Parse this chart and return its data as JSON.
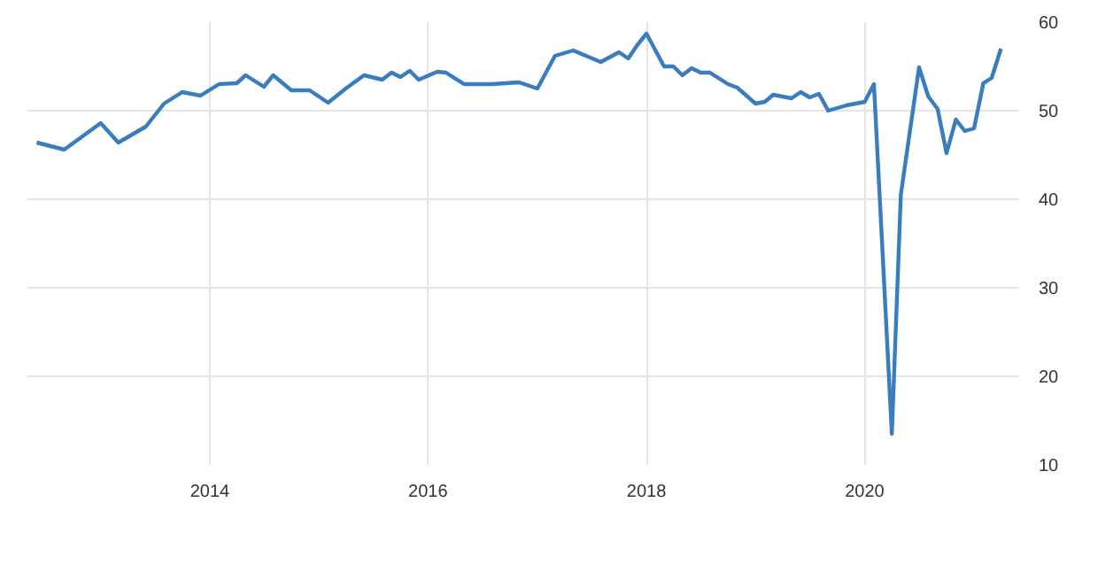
{
  "chart_data": {
    "type": "line",
    "x": [
      "2012-06",
      "2012-09",
      "2012-11",
      "2013-01",
      "2013-03",
      "2013-06",
      "2013-08",
      "2013-10",
      "2013-12",
      "2014-02",
      "2014-04",
      "2014-05",
      "2014-07",
      "2014-08",
      "2014-10",
      "2014-12",
      "2015-02",
      "2015-04",
      "2015-06",
      "2015-08",
      "2015-09",
      "2015-10",
      "2015-11",
      "2015-12",
      "2016-02",
      "2016-03",
      "2016-05",
      "2016-08",
      "2016-11",
      "2017-01",
      "2017-03",
      "2017-05",
      "2017-08",
      "2017-10",
      "2017-11",
      "2017-12",
      "2018-01",
      "2018-03",
      "2018-04",
      "2018-05",
      "2018-06",
      "2018-07",
      "2018-08",
      "2018-10",
      "2018-11",
      "2019-01",
      "2019-02",
      "2019-03",
      "2019-05",
      "2019-06",
      "2019-07",
      "2019-08",
      "2019-09",
      "2019-11",
      "2020-01",
      "2020-02",
      "2020-04",
      "2020-05",
      "2020-07",
      "2020-08",
      "2020-09",
      "2020-10",
      "2020-11",
      "2020-12",
      "2021-01",
      "2021-02",
      "2021-03",
      "2021-04"
    ],
    "series": [
      {
        "color": "#3a7dbf",
        "values": [
          46.4,
          45.6,
          47.1,
          48.6,
          46.4,
          48.2,
          50.8,
          52.1,
          51.7,
          53.0,
          53.1,
          54.0,
          52.7,
          54.0,
          52.3,
          52.3,
          50.9,
          52.5,
          54.0,
          53.5,
          54.3,
          53.8,
          54.5,
          53.5,
          54.4,
          54.3,
          53.0,
          53.0,
          53.2,
          52.5,
          56.2,
          56.8,
          55.5,
          56.6,
          55.9,
          57.4,
          58.7,
          55.0,
          55.0,
          54.0,
          54.8,
          54.3,
          54.3,
          53.0,
          52.6,
          50.8,
          51.0,
          51.8,
          51.4,
          52.1,
          51.5,
          51.9,
          50.0,
          50.6,
          51.0,
          53.0,
          13.5,
          40.5,
          54.9,
          51.6,
          50.2,
          45.2,
          49.0,
          47.7,
          48.0,
          53.1,
          53.7,
          57.0
        ]
      }
    ],
    "xlim": [
      "2012-05",
      "2021-06"
    ],
    "ylim": [
      10,
      60
    ],
    "xticks": [
      {
        "value": "2014-01",
        "label": "2014"
      },
      {
        "value": "2016-01",
        "label": "2016"
      },
      {
        "value": "2018-01",
        "label": "2018"
      },
      {
        "value": "2020-01",
        "label": "2020"
      }
    ],
    "yticks": [
      10,
      20,
      30,
      40,
      50,
      60
    ],
    "grid": true
  }
}
